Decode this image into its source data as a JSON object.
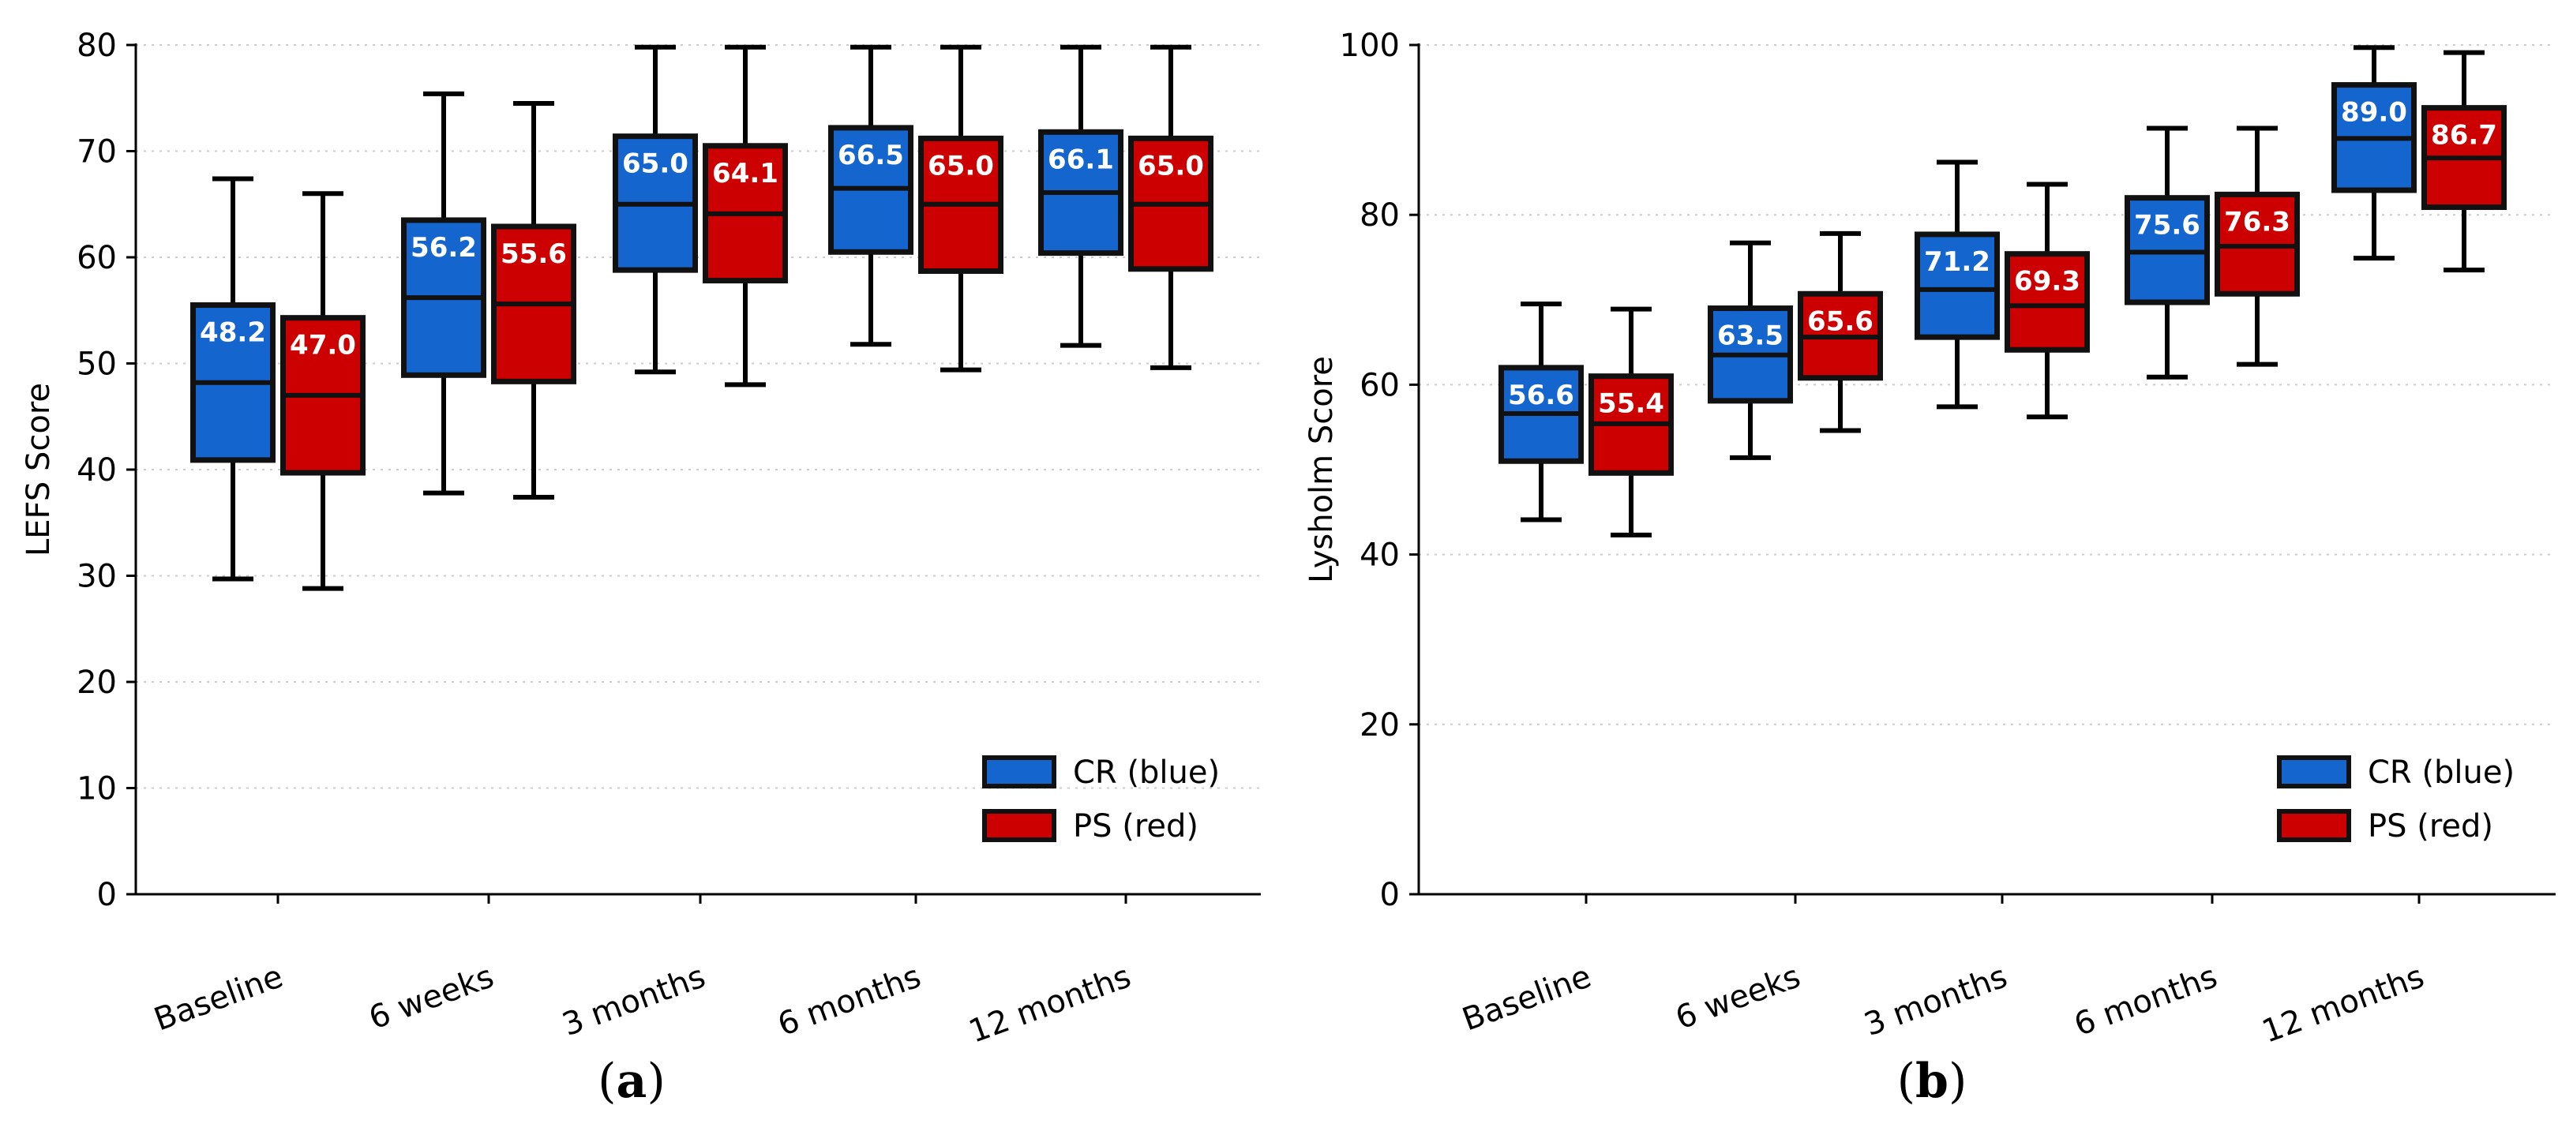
{
  "colors": {
    "cr": "#1565cf",
    "ps": "#cc0000",
    "edge": "#111111",
    "grid": "#cccccc"
  },
  "chart_data": [
    {
      "type": "box",
      "panel": "(a)",
      "ylabel": "LEFS Score",
      "xlabel": "",
      "ylim": [
        0,
        80
      ],
      "yticks": [
        "0",
        "10",
        "20",
        "30",
        "40",
        "50",
        "60",
        "70",
        "80"
      ],
      "grid": "horizontal dotted",
      "legend_position": "lower-right",
      "categories": [
        "Baseline",
        "6 weeks",
        "3 months",
        "6 months",
        "12 months"
      ],
      "series": [
        {
          "name": "CR (blue)",
          "key": "cr",
          "boxes": [
            {
              "whisker_low": 29.7,
              "q1": 40.9,
              "median": 48.2,
              "q3": 55.5,
              "whisker_high": 67.4,
              "label": "48.2"
            },
            {
              "whisker_low": 37.8,
              "q1": 48.9,
              "median": 56.2,
              "q3": 63.5,
              "whisker_high": 75.4,
              "label": "56.2"
            },
            {
              "whisker_low": 49.2,
              "q1": 58.8,
              "median": 65.0,
              "q3": 71.4,
              "whisker_high": 79.8,
              "label": "65.0"
            },
            {
              "whisker_low": 51.8,
              "q1": 60.5,
              "median": 66.5,
              "q3": 72.2,
              "whisker_high": 79.8,
              "label": "66.5"
            },
            {
              "whisker_low": 51.7,
              "q1": 60.4,
              "median": 66.1,
              "q3": 71.8,
              "whisker_high": 79.8,
              "label": "66.1"
            }
          ]
        },
        {
          "name": "PS (red)",
          "key": "ps",
          "boxes": [
            {
              "whisker_low": 28.8,
              "q1": 39.7,
              "median": 47.0,
              "q3": 54.3,
              "whisker_high": 66.0,
              "label": "47.0"
            },
            {
              "whisker_low": 37.4,
              "q1": 48.3,
              "median": 55.6,
              "q3": 62.9,
              "whisker_high": 74.5,
              "label": "55.6"
            },
            {
              "whisker_low": 48.0,
              "q1": 57.8,
              "median": 64.1,
              "q3": 70.5,
              "whisker_high": 79.8,
              "label": "64.1"
            },
            {
              "whisker_low": 49.4,
              "q1": 58.7,
              "median": 65.0,
              "q3": 71.2,
              "whisker_high": 79.8,
              "label": "65.0"
            },
            {
              "whisker_low": 49.6,
              "q1": 58.9,
              "median": 65.0,
              "q3": 71.2,
              "whisker_high": 79.8,
              "label": "65.0"
            }
          ]
        }
      ]
    },
    {
      "type": "box",
      "panel": "(b)",
      "ylabel": "Lysholm Score",
      "xlabel": "",
      "ylim": [
        0,
        100
      ],
      "yticks": [
        "0",
        "20",
        "40",
        "60",
        "80",
        "100"
      ],
      "grid": "horizontal dotted",
      "legend_position": "lower-right",
      "categories": [
        "Baseline",
        "6 weeks",
        "3 months",
        "6 months",
        "12 months"
      ],
      "series": [
        {
          "name": "CR (blue)",
          "key": "cr",
          "boxes": [
            {
              "whisker_low": 44.1,
              "q1": 51.0,
              "median": 56.6,
              "q3": 62.0,
              "whisker_high": 69.5,
              "label": "56.6"
            },
            {
              "whisker_low": 51.4,
              "q1": 58.1,
              "median": 63.5,
              "q3": 69.0,
              "whisker_high": 76.7,
              "label": "63.5"
            },
            {
              "whisker_low": 57.4,
              "q1": 65.6,
              "median": 71.2,
              "q3": 77.7,
              "whisker_high": 86.2,
              "label": "71.2"
            },
            {
              "whisker_low": 60.9,
              "q1": 69.7,
              "median": 75.6,
              "q3": 82.0,
              "whisker_high": 90.2,
              "label": "75.6"
            },
            {
              "whisker_low": 74.9,
              "q1": 82.9,
              "median": 89.0,
              "q3": 95.3,
              "whisker_high": 99.7,
              "label": "89.0"
            }
          ]
        },
        {
          "name": "PS (red)",
          "key": "ps",
          "boxes": [
            {
              "whisker_low": 42.3,
              "q1": 49.6,
              "median": 55.4,
              "q3": 61.0,
              "whisker_high": 68.9,
              "label": "55.4"
            },
            {
              "whisker_low": 54.6,
              "q1": 60.8,
              "median": 65.6,
              "q3": 70.7,
              "whisker_high": 77.8,
              "label": "65.6"
            },
            {
              "whisker_low": 56.2,
              "q1": 64.1,
              "median": 69.3,
              "q3": 75.4,
              "whisker_high": 83.6,
              "label": "69.3"
            },
            {
              "whisker_low": 62.4,
              "q1": 70.7,
              "median": 76.3,
              "q3": 82.4,
              "whisker_high": 90.2,
              "label": "76.3"
            },
            {
              "whisker_low": 73.5,
              "q1": 80.9,
              "median": 86.7,
              "q3": 92.6,
              "whisker_high": 99.1,
              "label": "86.7"
            }
          ]
        }
      ]
    }
  ]
}
